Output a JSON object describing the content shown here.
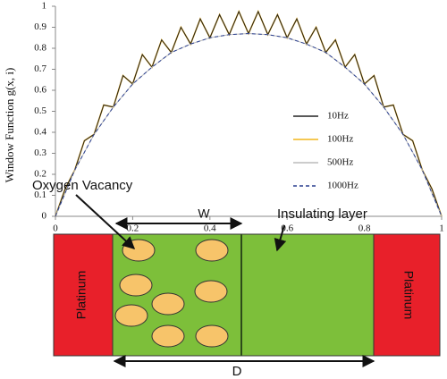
{
  "chart_data": {
    "type": "line",
    "y_label": "Window Function g(x, i)",
    "x": [
      0,
      0.05,
      0.1,
      0.15,
      0.2,
      0.25,
      0.3,
      0.35,
      0.4,
      0.45,
      0.5,
      0.55,
      0.6,
      0.65,
      0.7,
      0.75,
      0.8,
      0.85,
      0.9,
      0.95,
      1
    ],
    "series": [
      {
        "name": "10Hz",
        "color": "#222222",
        "dash": false,
        "x": [
          0,
          0.025,
          0.05,
          0.075,
          0.1,
          0.125,
          0.15,
          0.175,
          0.2,
          0.225,
          0.25,
          0.275,
          0.3,
          0.325,
          0.35,
          0.375,
          0.4,
          0.425,
          0.45,
          0.475,
          0.5,
          0.525,
          0.55,
          0.575,
          0.6,
          0.625,
          0.65,
          0.675,
          0.7,
          0.725,
          0.75,
          0.775,
          0.8,
          0.825,
          0.85,
          0.875,
          0.9,
          0.925,
          0.95,
          0.975,
          1
        ],
        "values": [
          0,
          0.13,
          0.22,
          0.36,
          0.39,
          0.53,
          0.52,
          0.67,
          0.63,
          0.77,
          0.71,
          0.84,
          0.78,
          0.9,
          0.82,
          0.94,
          0.85,
          0.96,
          0.865,
          0.975,
          0.87,
          0.975,
          0.865,
          0.96,
          0.85,
          0.94,
          0.82,
          0.9,
          0.78,
          0.84,
          0.71,
          0.77,
          0.63,
          0.67,
          0.52,
          0.53,
          0.39,
          0.36,
          0.22,
          0.13,
          0
        ]
      },
      {
        "name": "100Hz",
        "color": "#f2b51c",
        "dash": false,
        "x": [
          0,
          0.025,
          0.05,
          0.075,
          0.1,
          0.125,
          0.15,
          0.175,
          0.2,
          0.225,
          0.25,
          0.275,
          0.3,
          0.325,
          0.35,
          0.375,
          0.4,
          0.425,
          0.45,
          0.475,
          0.5,
          0.525,
          0.55,
          0.575,
          0.6,
          0.625,
          0.65,
          0.675,
          0.7,
          0.725,
          0.75,
          0.775,
          0.8,
          0.825,
          0.85,
          0.875,
          0.9,
          0.925,
          0.95,
          0.975,
          1
        ],
        "values": [
          0,
          0.13,
          0.22,
          0.36,
          0.39,
          0.53,
          0.52,
          0.67,
          0.63,
          0.77,
          0.71,
          0.84,
          0.78,
          0.9,
          0.82,
          0.94,
          0.85,
          0.96,
          0.865,
          0.975,
          0.87,
          0.975,
          0.865,
          0.96,
          0.85,
          0.94,
          0.82,
          0.9,
          0.78,
          0.84,
          0.71,
          0.77,
          0.63,
          0.67,
          0.52,
          0.53,
          0.39,
          0.36,
          0.22,
          0.13,
          0
        ]
      },
      {
        "name": "500Hz",
        "color": "#bbbbbb",
        "dash": false,
        "values": [
          0,
          0.22,
          0.39,
          0.52,
          0.63,
          0.71,
          0.78,
          0.82,
          0.85,
          0.865,
          0.87,
          0.865,
          0.85,
          0.82,
          0.78,
          0.71,
          0.63,
          0.52,
          0.39,
          0.22,
          0
        ]
      },
      {
        "name": "1000Hz",
        "color": "#2a3f8f",
        "dash": true,
        "values": [
          0,
          0.22,
          0.39,
          0.52,
          0.63,
          0.71,
          0.78,
          0.82,
          0.85,
          0.865,
          0.87,
          0.865,
          0.85,
          0.82,
          0.78,
          0.71,
          0.63,
          0.52,
          0.39,
          0.22,
          0
        ]
      }
    ],
    "xlim": [
      0,
      1
    ],
    "xticks": [
      0,
      0.2,
      0.4,
      0.6,
      0.8,
      1
    ],
    "ylim": [
      0,
      1
    ],
    "yticks": [
      0,
      0.1,
      0.2,
      0.3,
      0.4,
      0.5,
      0.6,
      0.7,
      0.8,
      0.9,
      1
    ]
  },
  "diagram": {
    "left_electrode": "Platinum",
    "right_electrode": "Platinum",
    "vacancy_label": "Oxygen Vacancy",
    "insulating_label": "Insulating layer",
    "w_label": "W",
    "d_label": "D"
  }
}
